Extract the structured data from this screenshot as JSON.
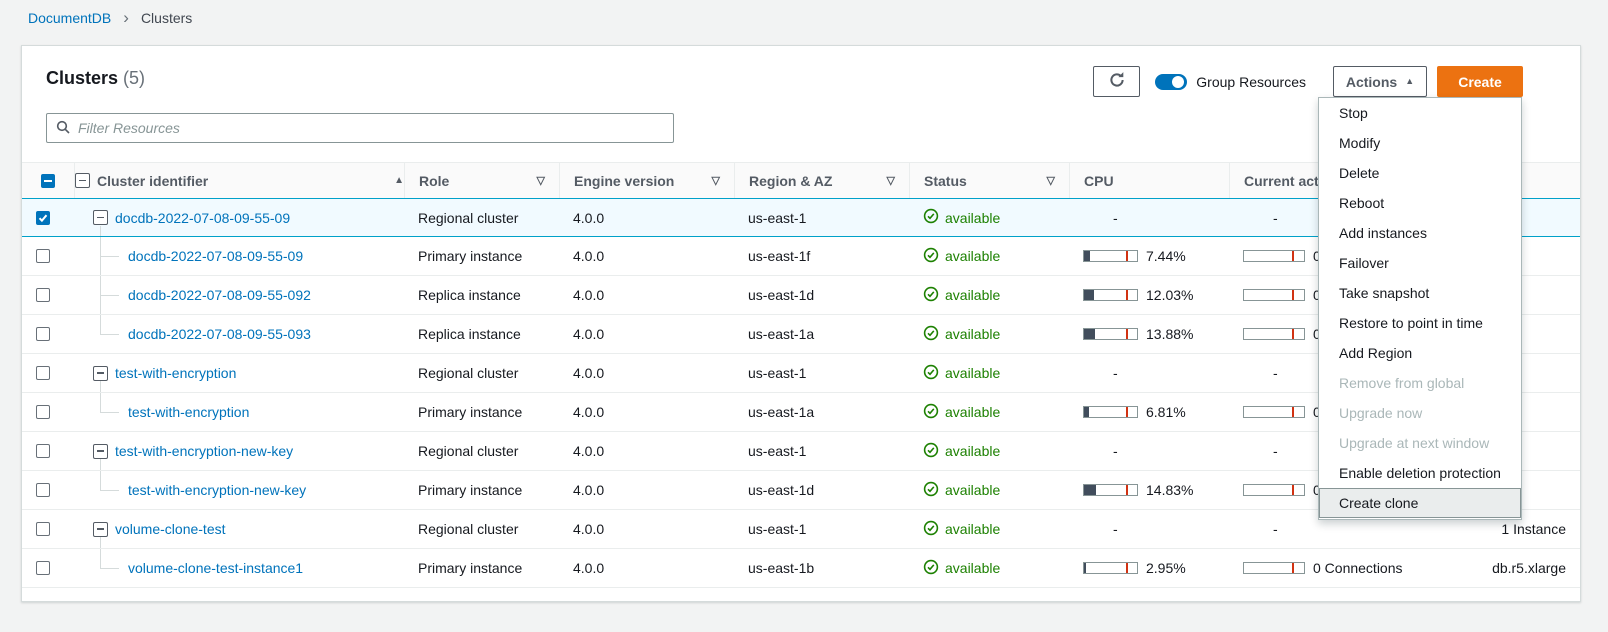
{
  "breadcrumb": {
    "root": "DocumentDB",
    "current": "Clusters"
  },
  "panel": {
    "title": "Clusters",
    "count": "(5)",
    "filter_placeholder": "Filter Resources",
    "toolbar": {
      "refresh_icon": "refresh-icon",
      "group_resources_label": "Group Resources",
      "group_resources_on": true,
      "actions_label": "Actions",
      "actions_caret": "▲",
      "create_label": "Create"
    }
  },
  "table": {
    "columns": [
      {
        "label": "Cluster identifier",
        "icon": "sort-asc"
      },
      {
        "label": "Role",
        "icon": "filter"
      },
      {
        "label": "Engine version",
        "icon": "filter"
      },
      {
        "label": "Region & AZ",
        "icon": "filter"
      },
      {
        "label": "Status",
        "icon": "filter"
      },
      {
        "label": "CPU",
        "icon": null
      },
      {
        "label": "Current activity",
        "icon": null
      },
      {
        "label": "",
        "icon": null
      }
    ],
    "rows": [
      {
        "id": "docdb-2022-07-08-09-55-09",
        "type": "cluster",
        "selected": true,
        "checked": true,
        "role": "Regional cluster",
        "engine": "4.0.0",
        "region": "us-east-1",
        "status": "available",
        "cpu_pct": null,
        "cpu_label": "-",
        "activity": null,
        "size": ""
      },
      {
        "id": "docdb-2022-07-08-09-55-09",
        "type": "instance",
        "selected": false,
        "checked": false,
        "role": "Primary instance",
        "engine": "4.0.0",
        "region": "us-east-1f",
        "status": "available",
        "cpu_pct": 7.44,
        "cpu_label": "7.44%",
        "activity": "0 Connections",
        "size": ""
      },
      {
        "id": "docdb-2022-07-08-09-55-092",
        "type": "instance",
        "selected": false,
        "checked": false,
        "role": "Replica instance",
        "engine": "4.0.0",
        "region": "us-east-1d",
        "status": "available",
        "cpu_pct": 12.03,
        "cpu_label": "12.03%",
        "activity": "0 Connections",
        "size": ""
      },
      {
        "id": "docdb-2022-07-08-09-55-093",
        "type": "instance",
        "selected": false,
        "checked": false,
        "role": "Replica instance",
        "engine": "4.0.0",
        "region": "us-east-1a",
        "status": "available",
        "cpu_pct": 13.88,
        "cpu_label": "13.88%",
        "activity": "0 Connections",
        "size": ""
      },
      {
        "id": "test-with-encryption",
        "type": "cluster",
        "selected": false,
        "checked": false,
        "role": "Regional cluster",
        "engine": "4.0.0",
        "region": "us-east-1",
        "status": "available",
        "cpu_pct": null,
        "cpu_label": "-",
        "activity": null,
        "size": ""
      },
      {
        "id": "test-with-encryption",
        "type": "instance",
        "selected": false,
        "checked": false,
        "role": "Primary instance",
        "engine": "4.0.0",
        "region": "us-east-1a",
        "status": "available",
        "cpu_pct": 6.81,
        "cpu_label": "6.81%",
        "activity": "0 Connections",
        "size": ""
      },
      {
        "id": "test-with-encryption-new-key",
        "type": "cluster",
        "selected": false,
        "checked": false,
        "role": "Regional cluster",
        "engine": "4.0.0",
        "region": "us-east-1",
        "status": "available",
        "cpu_pct": null,
        "cpu_label": "-",
        "activity": null,
        "size": ""
      },
      {
        "id": "test-with-encryption-new-key",
        "type": "instance",
        "selected": false,
        "checked": false,
        "role": "Primary instance",
        "engine": "4.0.0",
        "region": "us-east-1d",
        "status": "available",
        "cpu_pct": 14.83,
        "cpu_label": "14.83%",
        "activity": "0 Connections",
        "size": ""
      },
      {
        "id": "volume-clone-test",
        "type": "cluster",
        "selected": false,
        "checked": false,
        "role": "Regional cluster",
        "engine": "4.0.0",
        "region": "us-east-1",
        "status": "available",
        "cpu_pct": null,
        "cpu_label": "-",
        "activity": null,
        "size": "1 Instance"
      },
      {
        "id": "volume-clone-test-instance1",
        "type": "instance",
        "selected": false,
        "checked": false,
        "role": "Primary instance",
        "engine": "4.0.0",
        "region": "us-east-1b",
        "status": "available",
        "cpu_pct": 2.95,
        "cpu_label": "2.95%",
        "activity": "0 Connections",
        "size": "db.r5.xlarge"
      }
    ]
  },
  "actions_menu": {
    "items": [
      {
        "label": "Stop",
        "enabled": true,
        "highlighted": false
      },
      {
        "label": "Modify",
        "enabled": true,
        "highlighted": false
      },
      {
        "label": "Delete",
        "enabled": true,
        "highlighted": false
      },
      {
        "label": "Reboot",
        "enabled": true,
        "highlighted": false
      },
      {
        "label": "Add instances",
        "enabled": true,
        "highlighted": false
      },
      {
        "label": "Failover",
        "enabled": true,
        "highlighted": false
      },
      {
        "label": "Take snapshot",
        "enabled": true,
        "highlighted": false
      },
      {
        "label": "Restore to point in time",
        "enabled": true,
        "highlighted": false
      },
      {
        "label": "Add Region",
        "enabled": true,
        "highlighted": false
      },
      {
        "label": "Remove from global",
        "enabled": false,
        "highlighted": false
      },
      {
        "label": "Upgrade now",
        "enabled": false,
        "highlighted": false
      },
      {
        "label": "Upgrade at next window",
        "enabled": false,
        "highlighted": false
      },
      {
        "label": "Enable deletion protection",
        "enabled": true,
        "highlighted": false
      },
      {
        "label": "Create clone",
        "enabled": true,
        "highlighted": true
      }
    ]
  },
  "colors": {
    "accent_orange": "#ec7211",
    "link_blue": "#0073bb",
    "status_green": "#1d8102",
    "selected_row_bg": "#f1faff",
    "selected_row_border": "#00a1c9",
    "cpu_fill": "#414d5c",
    "threshold_red": "#d13212",
    "disabled_gray": "#aab7b8"
  }
}
